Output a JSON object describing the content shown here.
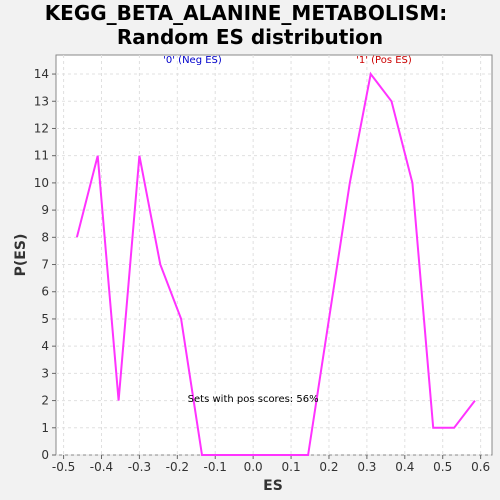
{
  "chart_data": {
    "type": "line",
    "title_line1": "KEGG_BETA_ALANINE_METABOLISM:",
    "title_line2": "Random ES distribution",
    "xlabel": "ES",
    "ylabel": "P(ES)",
    "xlim": [
      -0.52,
      0.63
    ],
    "ylim": [
      0,
      14.7
    ],
    "xticks": [
      -0.5,
      -0.4,
      -0.3,
      -0.2,
      -0.1,
      0.0,
      0.1,
      0.2,
      0.3,
      0.4,
      0.5,
      0.6
    ],
    "xtick_labels": [
      "-0.5",
      "-0.4",
      "-0.3",
      "-0.2",
      "-0.1",
      "0.0",
      "0.1",
      "0.2",
      "0.3",
      "0.4",
      "0.5",
      "0.6"
    ],
    "yticks": [
      0,
      1,
      2,
      3,
      4,
      5,
      6,
      7,
      8,
      9,
      10,
      11,
      12,
      13,
      14
    ],
    "grid": true,
    "series": [
      {
        "color": "#ff33ff",
        "x": [
          -0.465,
          -0.41,
          -0.355,
          -0.3,
          -0.245,
          -0.19,
          -0.135,
          -0.08,
          -0.025,
          0.03,
          0.09,
          0.145,
          0.2,
          0.255,
          0.31,
          0.365,
          0.42,
          0.475,
          0.53,
          0.585
        ],
        "y": [
          8,
          11,
          2,
          11,
          7,
          5,
          0,
          0,
          0,
          0,
          0,
          0,
          5,
          10,
          14,
          13,
          10,
          1,
          1,
          2
        ]
      }
    ],
    "annotations": [
      {
        "text": "'0' (Neg ES)",
        "x": -0.16,
        "y": 14.4,
        "color": "#0000cc"
      },
      {
        "text": "'1' (Pos ES)",
        "x": 0.345,
        "y": 14.4,
        "color": "#cc0000"
      },
      {
        "text": "Sets with pos scores: 56%",
        "x": 0.0,
        "y": 1.95,
        "color": "#000000"
      }
    ]
  }
}
